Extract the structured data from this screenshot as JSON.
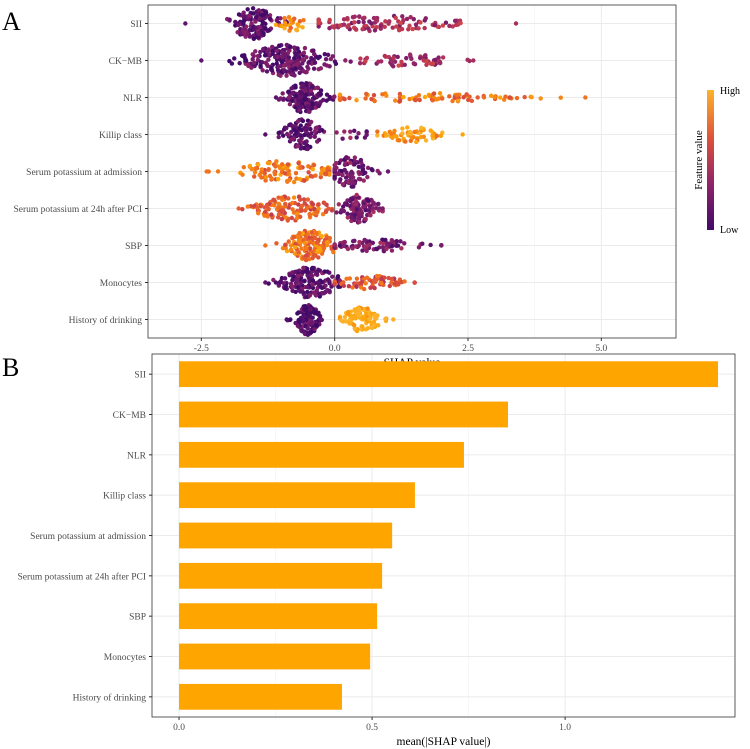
{
  "chart_data": [
    {
      "panel_label": "A",
      "type": "scatter",
      "subtype": "beeswarm",
      "xlabel": "SHAP value",
      "xlim": [
        -3.5,
        6.4
      ],
      "xticks": [
        -2.5,
        0.0,
        2.5,
        5.0
      ],
      "xtick_labels": [
        "-2.5",
        "0.0",
        "2.5",
        "5.0"
      ],
      "features": [
        "SII",
        "CK−MB",
        "NLR",
        "Killip class",
        "Serum potassium at admission",
        "Serum potassium at 24h after PCI",
        "SBP",
        "Monocytes",
        "History of drinking"
      ],
      "legend": {
        "title": "Feature value",
        "high": "High",
        "low": "Low",
        "position": "right"
      },
      "colors": [
        "#420a68",
        "#6a176e",
        "#932667",
        "#bc3754",
        "#dd513a",
        "#f37819",
        "#fca50a",
        "#fcb32c"
      ],
      "clusters": [
        [
          {
            "c": -1.5,
            "sd": 0.25,
            "min": -2.8,
            "max": -0.9,
            "n": 140,
            "v": 0.1,
            "w": 1
          },
          {
            "c": -0.8,
            "sd": 0.15,
            "min": -1.1,
            "max": -0.5,
            "n": 25,
            "v": 0.8,
            "w": 0.5
          },
          {
            "c": 0.9,
            "sd": 0.8,
            "min": -0.3,
            "max": 3.4,
            "n": 110,
            "v": 0.35,
            "w": 0.5
          }
        ],
        [
          {
            "c": -0.9,
            "sd": 0.45,
            "min": -2.5,
            "max": 0.3,
            "n": 210,
            "v": 0.1,
            "w": 1
          },
          {
            "c": 1.3,
            "sd": 0.55,
            "min": 0.2,
            "max": 2.6,
            "n": 60,
            "v": 0.35,
            "w": 0.4
          }
        ],
        [
          {
            "c": -0.55,
            "sd": 0.2,
            "min": -1.1,
            "max": 0.1,
            "n": 150,
            "v": 0.1,
            "w": 1
          },
          {
            "c": 1.5,
            "sd": 1.1,
            "min": 0.1,
            "max": 4.7,
            "n": 90,
            "v": 0.7,
            "w": 0.3
          }
        ],
        [
          {
            "c": -0.6,
            "sd": 0.2,
            "min": -1.3,
            "max": -0.2,
            "n": 90,
            "v": 0.08,
            "w": 1
          },
          {
            "c": 0.3,
            "sd": 0.3,
            "min": -0.1,
            "max": 0.6,
            "n": 12,
            "v": 0.2,
            "w": 0.3
          },
          {
            "c": 1.4,
            "sd": 0.35,
            "min": 0.8,
            "max": 2.4,
            "n": 60,
            "v": 0.85,
            "w": 0.5
          }
        ],
        [
          {
            "c": -0.9,
            "sd": 0.5,
            "min": -2.4,
            "max": -0.1,
            "n": 110,
            "v": 0.7,
            "w": 0.7
          },
          {
            "c": 0.3,
            "sd": 0.2,
            "min": 0,
            "max": 1.0,
            "n": 90,
            "v": 0.15,
            "w": 1
          }
        ],
        [
          {
            "c": -0.8,
            "sd": 0.4,
            "min": -1.8,
            "max": -0.05,
            "n": 130,
            "v": 0.62,
            "w": 0.8
          },
          {
            "c": 0.45,
            "sd": 0.2,
            "min": 0,
            "max": 0.9,
            "n": 110,
            "v": 0.2,
            "w": 1
          }
        ],
        [
          {
            "c": -0.45,
            "sd": 0.25,
            "min": -1.3,
            "max": 0.1,
            "n": 150,
            "v": 0.7,
            "w": 1
          },
          {
            "c": 0.8,
            "sd": 0.45,
            "min": 0,
            "max": 2.0,
            "n": 80,
            "v": 0.2,
            "w": 0.4
          }
        ],
        [
          {
            "c": -0.45,
            "sd": 0.3,
            "min": -1.3,
            "max": 0.1,
            "n": 170,
            "v": 0.1,
            "w": 1
          },
          {
            "c": 0.7,
            "sd": 0.35,
            "min": 0,
            "max": 1.5,
            "n": 70,
            "v": 0.55,
            "w": 0.45
          }
        ],
        [
          {
            "c": -0.5,
            "sd": 0.12,
            "min": -0.9,
            "max": -0.2,
            "n": 120,
            "v": 0.05,
            "w": 1
          },
          {
            "c": 0.5,
            "sd": 0.2,
            "min": 0.1,
            "max": 1.1,
            "n": 110,
            "v": 0.95,
            "w": 0.8
          }
        ]
      ]
    },
    {
      "panel_label": "B",
      "type": "bar",
      "orientation": "horizontal",
      "xlabel": "mean(|SHAP value|)",
      "xlim": [
        -0.07,
        1.44
      ],
      "xticks": [
        0.0,
        0.5,
        1.0
      ],
      "xtick_labels": [
        "0.0",
        "0.5",
        "1.0"
      ],
      "categories": [
        "SII",
        "CK−MB",
        "NLR",
        "Killip class",
        "Serum potassium at admission",
        "Serum potassium at 24h after PCI",
        "SBP",
        "Monocytes",
        "History of drinking"
      ],
      "values": [
        1.396,
        0.852,
        0.738,
        0.611,
        0.552,
        0.526,
        0.513,
        0.495,
        0.422
      ],
      "bar_color": "#ffa500"
    }
  ]
}
